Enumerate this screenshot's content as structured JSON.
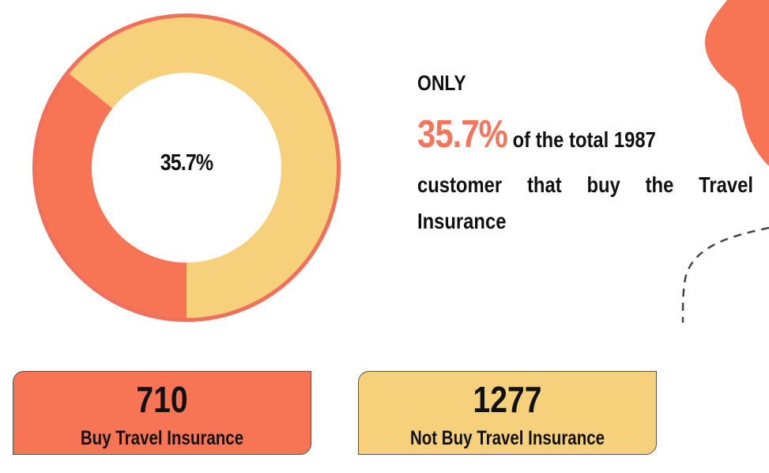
{
  "chart_data": {
    "type": "pie",
    "style": "donut",
    "center_label": "35.7%",
    "slices": [
      {
        "name": "Buy Travel Insurance",
        "value": 710,
        "percent": 35.7,
        "color": "#f77455"
      },
      {
        "name": "Not Buy Travel Insurance",
        "value": 1277,
        "percent": 64.3,
        "color": "#f7d07b"
      }
    ],
    "total": 1987
  },
  "statement": {
    "only": "ONLY",
    "percent": "35.7%",
    "rest": "of the total 1987",
    "line3": "customer that buy the Travel",
    "line4": "Insurance"
  },
  "cards": {
    "buy": {
      "number": "710",
      "label": "Buy Travel Insurance",
      "color": "#f77455"
    },
    "not_buy": {
      "number": "1277",
      "label": "Not Buy Travel Insurance",
      "color": "#f7d07b"
    }
  },
  "colors": {
    "accent": "#f6745a",
    "ring_outline": "#f2705a",
    "decoration": "#f77455"
  }
}
